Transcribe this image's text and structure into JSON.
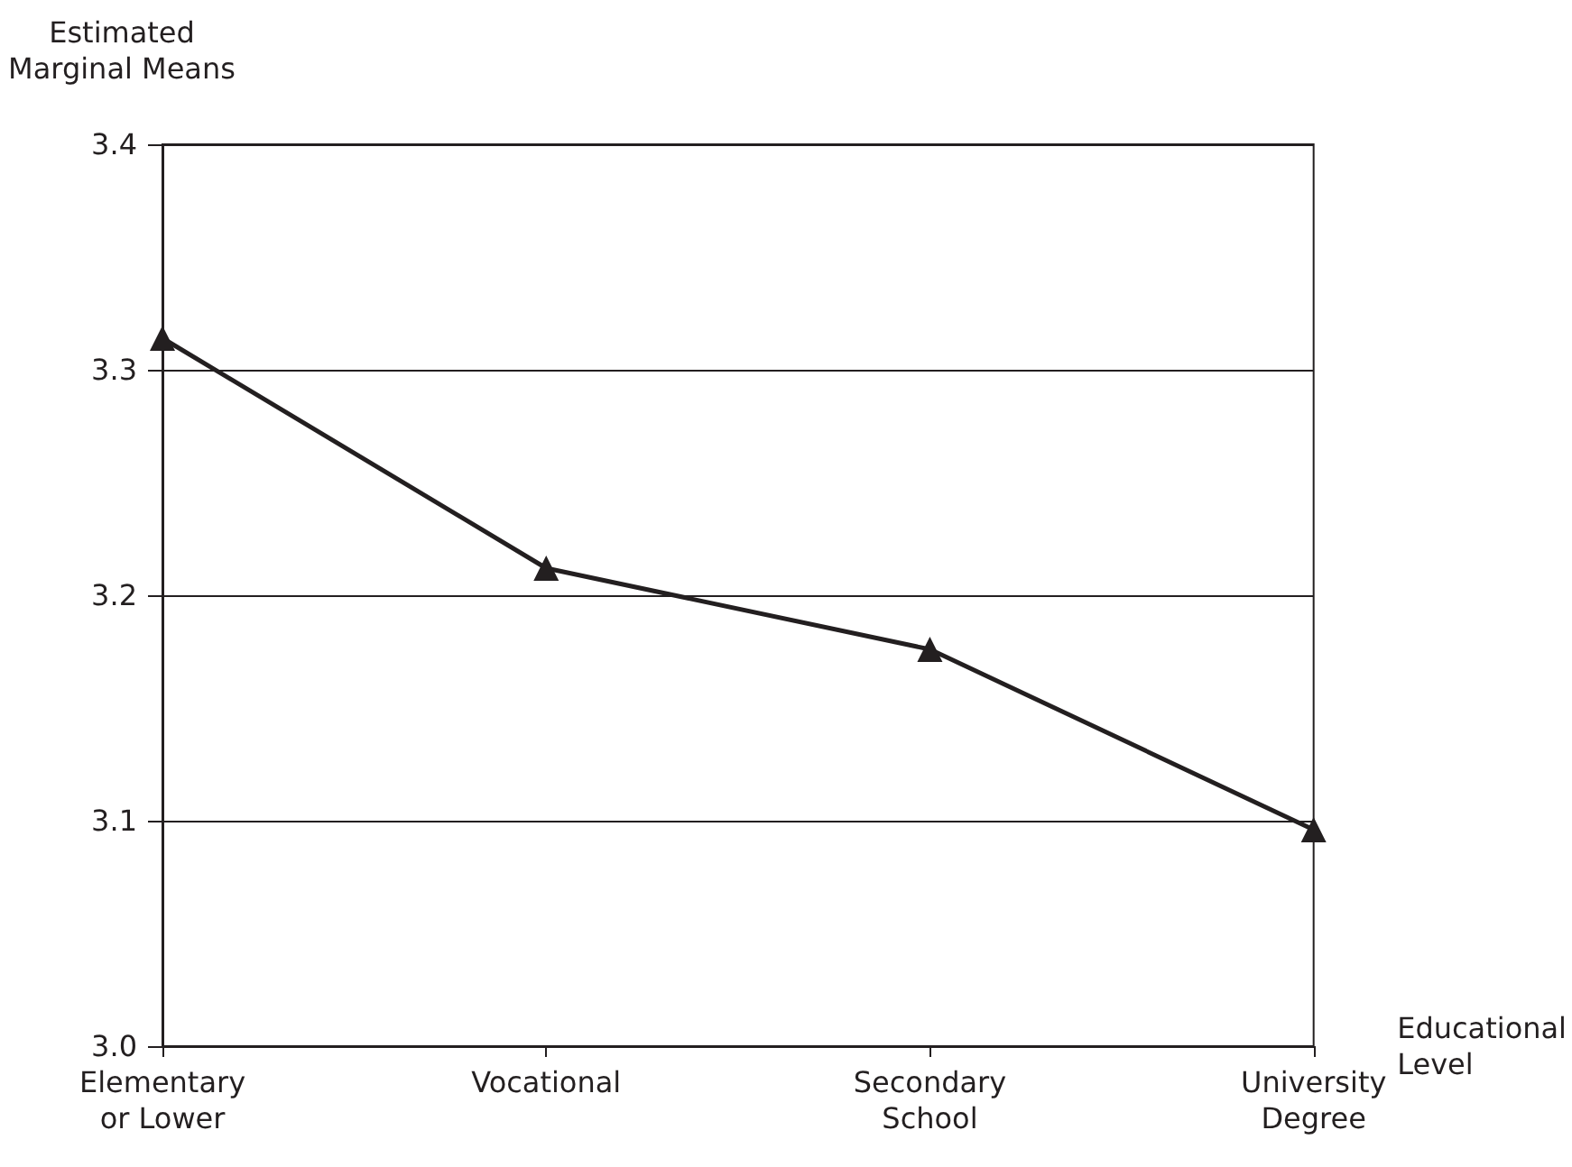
{
  "chart_data": {
    "type": "line",
    "xlabel": "Educational\nLevel",
    "ylabel": "Estimated\nMarginal Means",
    "categories": [
      "Elementary\nor Lower",
      "Vocational",
      "Secondary\nSchool",
      "University\nDegree"
    ],
    "series": [
      {
        "color": "#231f20",
        "values": [
          3.314,
          3.212,
          3.176,
          3.096
        ]
      }
    ],
    "ylim": [
      3.0,
      3.4
    ],
    "yticks": [
      {
        "value": 3.0,
        "label": "3.0"
      },
      3.1,
      3.2,
      3.3,
      3.4
    ],
    "grid": "y",
    "marker": "triangle",
    "line_style": "solid"
  }
}
